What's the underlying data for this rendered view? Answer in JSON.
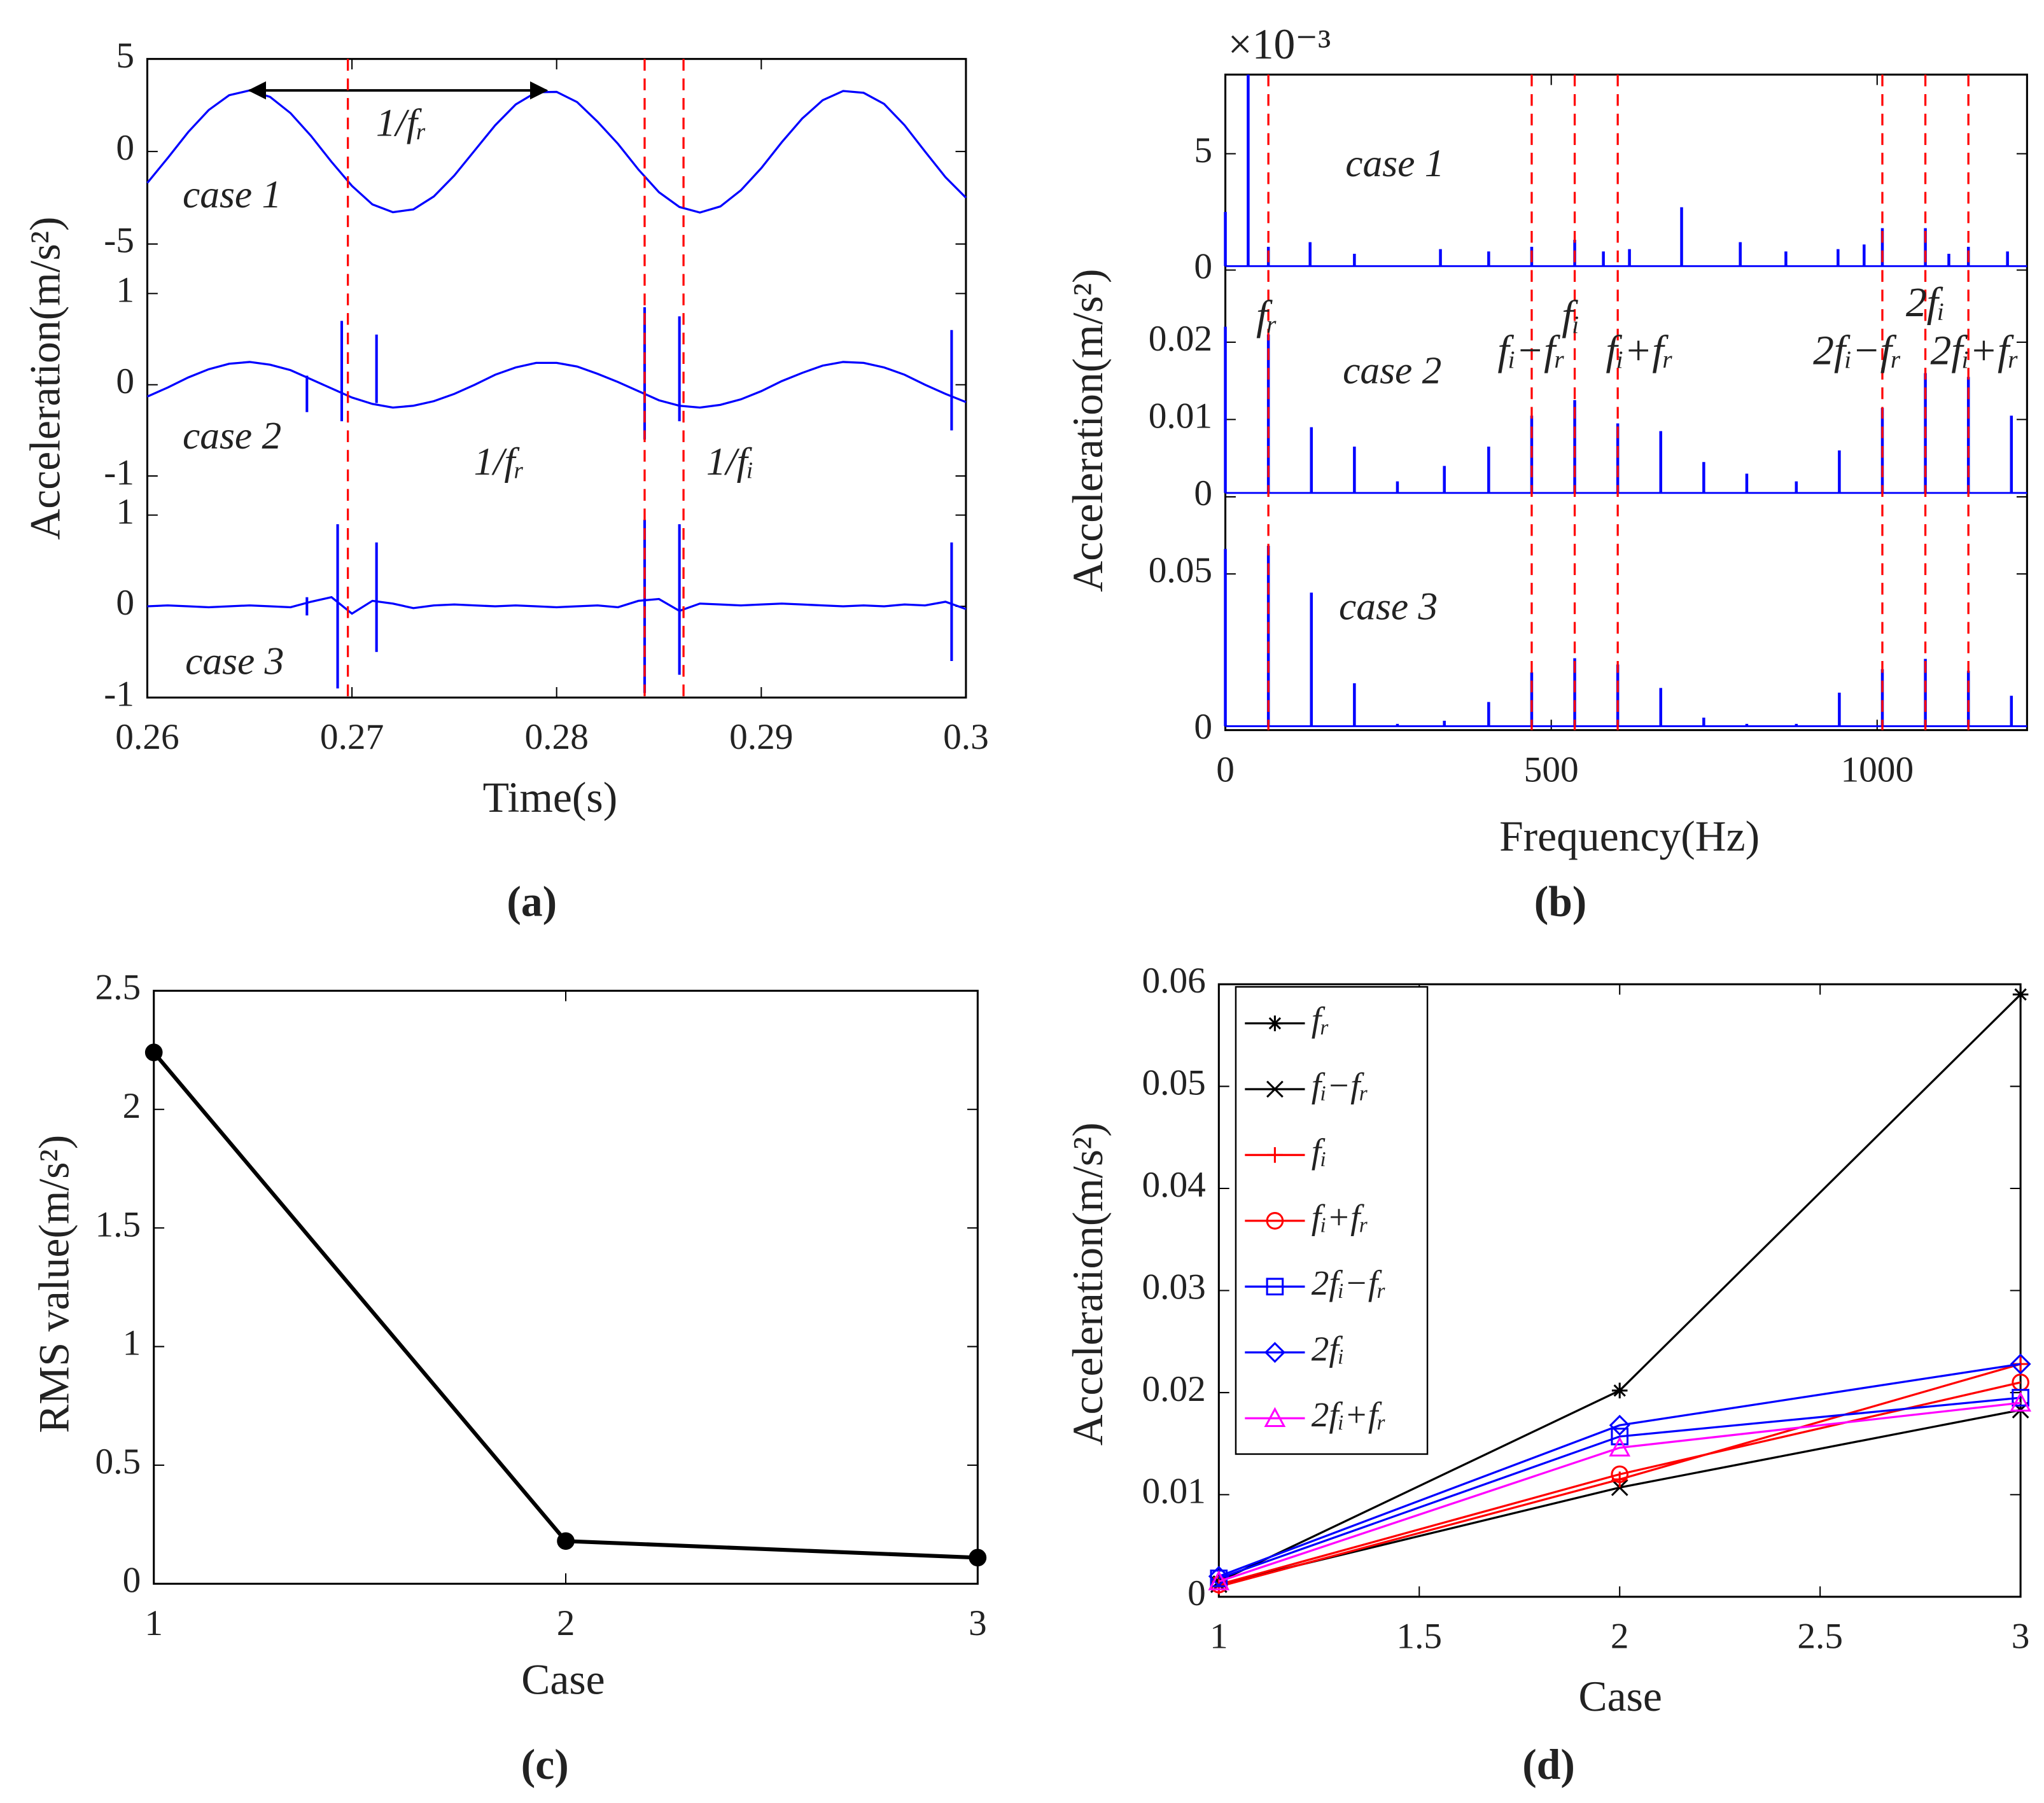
{
  "chart_data": [
    {
      "type": "line",
      "label": "(a)",
      "xlabel": "Time(s)",
      "ylabel": "Acceleration(m/s²)",
      "color": "#0000ff",
      "vline_color": "#ff0000",
      "xlim": [
        0.26,
        0.3
      ],
      "xticks": [
        0.26,
        0.27,
        0.28,
        0.29,
        0.3
      ],
      "x": [
        0.26,
        0.261,
        0.262,
        0.263,
        0.264,
        0.265,
        0.266,
        0.267,
        0.268,
        0.269,
        0.27,
        0.271,
        0.272,
        0.273,
        0.274,
        0.275,
        0.276,
        0.277,
        0.278,
        0.279,
        0.28,
        0.281,
        0.282,
        0.283,
        0.284,
        0.285,
        0.286,
        0.287,
        0.288,
        0.289,
        0.29,
        0.291,
        0.292,
        0.293,
        0.294,
        0.295,
        0.296,
        0.297,
        0.298,
        0.299,
        0.3
      ],
      "vlines": [
        0.2698,
        0.2843,
        0.2862
      ],
      "arrow": {
        "x": [
          0.265,
          0.2795
        ],
        "y": 3.3
      },
      "annotations": [
        "1/fᵣ",
        "1/fᵣ",
        "1/fᵢ"
      ],
      "panels": [
        {
          "name": "case 1",
          "ylim": [
            -5,
            5
          ],
          "yticks": [
            -5,
            0,
            5
          ],
          "values": [
            -1.7,
            -0.35,
            1.05,
            2.24,
            3.04,
            3.3,
            2.95,
            2.07,
            0.84,
            -0.56,
            -1.86,
            -2.86,
            -3.28,
            -3.13,
            -2.43,
            -1.3,
            0.06,
            1.42,
            2.54,
            3.2,
            3.22,
            2.67,
            1.61,
            0.41,
            -0.98,
            -2.2,
            -3.0,
            -3.3,
            -2.97,
            -2.1,
            -0.9,
            0.5,
            1.78,
            2.77,
            3.27,
            3.17,
            2.57,
            1.42,
            0,
            -1.39,
            -2.5
          ],
          "impulse_x": [],
          "impulse_high": [],
          "impulse_low": []
        },
        {
          "name": "case 2",
          "ylim": [
            -1,
            1
          ],
          "yticks": [
            -1,
            0,
            1
          ],
          "values": [
            -0.13,
            -0.03,
            0.08,
            0.17,
            0.23,
            0.25,
            0.22,
            0.16,
            0.06,
            -0.04,
            -0.14,
            -0.21,
            -0.25,
            -0.23,
            -0.18,
            -0.1,
            0,
            0.11,
            0.19,
            0.24,
            0.24,
            0.2,
            0.12,
            0.03,
            -0.07,
            -0.17,
            -0.23,
            -0.25,
            -0.22,
            -0.16,
            -0.07,
            0.04,
            0.13,
            0.21,
            0.25,
            0.24,
            0.19,
            0.11,
            0,
            -0.1,
            -0.19
          ],
          "impulse_x": [
            0.2678,
            0.2695,
            0.2712,
            0.2843,
            0.286,
            0.2993
          ],
          "impulse_high": [
            0.1,
            0.7,
            0.55,
            0.85,
            0.75,
            0.6
          ],
          "impulse_low": [
            -0.3,
            -0.4,
            -0.2,
            -0.6,
            -0.4,
            -0.5
          ]
        },
        {
          "name": "case 3",
          "ylim": [
            -1,
            1
          ],
          "yticks": [
            -1,
            0,
            1
          ],
          "values": [
            0,
            0.01,
            0,
            -0.01,
            0,
            0.01,
            0,
            -0.01,
            0.05,
            0.1,
            -0.08,
            0.06,
            0.03,
            -0.02,
            0.01,
            0.02,
            0.01,
            0,
            0.01,
            0,
            -0.01,
            0,
            0.01,
            -0.01,
            0.06,
            0.08,
            -0.05,
            0.03,
            0.02,
            0.01,
            0.02,
            0.03,
            0.02,
            0.01,
            0,
            0.01,
            0,
            0.02,
            0.01,
            0.05,
            -0.03
          ],
          "impulse_x": [
            0.2678,
            0.2693,
            0.2712,
            0.2843,
            0.286,
            0.2993
          ],
          "impulse_high": [
            0.1,
            0.9,
            0.7,
            0.95,
            0.9,
            0.7
          ],
          "impulse_low": [
            -0.1,
            -0.9,
            -0.5,
            -0.95,
            -0.75,
            -0.6
          ]
        }
      ]
    },
    {
      "type": "stem",
      "label": "(b)",
      "xlabel": "Frequency(Hz)",
      "ylabel": "Acceleration(m/s²)",
      "color": "#0000ff",
      "vline_color": "#ff0000",
      "xlim": [
        0,
        1230
      ],
      "xticks": [
        0,
        500,
        1000
      ],
      "exponent": "×10⁻³",
      "harmonic_x": [
        66,
        470,
        536,
        602,
        1008,
        1074,
        1140
      ],
      "harmonic_labels": [
        "fᵣ",
        "fᵢ−fᵣ",
        "fᵢ",
        "fᵢ+fᵣ",
        "2fᵢ−fᵣ",
        "2fᵢ",
        "2fᵢ+fᵣ"
      ],
      "panels": [
        {
          "name": "case 1",
          "ylim": [
            0,
            0.0084
          ],
          "yticks": [
            0,
            {
              "value": 0.005,
              "label": "5"
            }
          ],
          "x": [
            0,
            35,
            66,
            130,
            198,
            330,
            404,
            470,
            536,
            580,
            620,
            700,
            790,
            860,
            940,
            980,
            1008,
            1074,
            1110,
            1140,
            1200
          ],
          "values": [
            0.0025,
            0.0084,
            0.001,
            0.0012,
            0.0007,
            0.0009,
            0.0008,
            0.001,
            0.0013,
            0.0008,
            0.0009,
            0.0027,
            0.0012,
            0.0008,
            0.0009,
            0.0011,
            0.0018,
            0.0018,
            0.0007,
            0.001,
            0.0008
          ]
        },
        {
          "name": "case 2",
          "ylim": [
            0,
            0.03
          ],
          "yticks": [
            0,
            0.01,
            0.02
          ],
          "x": [
            0,
            66,
            132,
            198,
            264,
            336,
            404,
            470,
            536,
            602,
            668,
            734,
            800,
            876,
            942,
            1008,
            1074,
            1140,
            1206
          ],
          "values": [
            0.022,
            0.021,
            0.009,
            0.0065,
            0.002,
            0.004,
            0.0065,
            0.0105,
            0.0125,
            0.0095,
            0.0085,
            0.0045,
            0.003,
            0.002,
            0.006,
            0.0115,
            0.016,
            0.0155,
            0.0105
          ]
        },
        {
          "name": "case 3",
          "ylim": [
            0,
            0.073
          ],
          "yticks": [
            0,
            0.05
          ],
          "x": [
            0,
            66,
            132,
            198,
            264,
            336,
            404,
            470,
            536,
            602,
            668,
            734,
            800,
            876,
            942,
            1008,
            1074,
            1140,
            1206
          ],
          "values": [
            0.058,
            0.059,
            0.044,
            0.015,
            0.002,
            0.003,
            0.009,
            0.0185,
            0.023,
            0.021,
            0.0135,
            0.004,
            0.002,
            0.002,
            0.012,
            0.0195,
            0.0228,
            0.019,
            0.011
          ]
        }
      ]
    },
    {
      "type": "line",
      "label": "(c)",
      "xlabel": "Case",
      "ylabel": "RMS value(m/s²)",
      "xlim": [
        1,
        3
      ],
      "xticks": [
        1,
        2,
        3
      ],
      "ylim": [
        0,
        2.5
      ],
      "yticks": [
        0,
        0.5,
        1,
        1.5,
        2,
        2.5
      ],
      "x": [
        1,
        2,
        3
      ],
      "series": [
        {
          "color": "#000000",
          "marker": "dot",
          "values": [
            2.24,
            0.18,
            0.11
          ]
        }
      ]
    },
    {
      "type": "line",
      "label": "(d)",
      "xlabel": "Case",
      "ylabel": "Acceleration(m/s²)",
      "legend": "upper left",
      "xlim": [
        1,
        3
      ],
      "xticks": [
        1,
        1.5,
        2,
        2.5,
        3
      ],
      "ylim": [
        0,
        0.06
      ],
      "yticks": [
        0,
        0.01,
        0.02,
        0.03,
        0.04,
        0.05,
        0.06
      ],
      "x": [
        1,
        2,
        3
      ],
      "series": [
        {
          "name": "fᵣ",
          "color": "#000000",
          "marker": "star",
          "values": [
            0.0015,
            0.0202,
            0.059
          ]
        },
        {
          "name": "fᵢ−fᵣ",
          "color": "#000000",
          "marker": "x",
          "values": [
            0.0012,
            0.0107,
            0.0183
          ]
        },
        {
          "name": "fᵢ",
          "color": "#ff0000",
          "marker": "plus",
          "values": [
            0.001,
            0.0115,
            0.0228
          ]
        },
        {
          "name": "fᵢ+fᵣ",
          "color": "#ff0000",
          "marker": "circle",
          "values": [
            0.0012,
            0.012,
            0.021
          ]
        },
        {
          "name": "2fᵢ−fᵣ",
          "color": "#0000ff",
          "marker": "square",
          "values": [
            0.0018,
            0.0157,
            0.0195
          ]
        },
        {
          "name": "2fᵢ",
          "color": "#0000ff",
          "marker": "diamond",
          "values": [
            0.002,
            0.0168,
            0.0228
          ]
        },
        {
          "name": "2fᵢ+fᵣ",
          "color": "#ff00ff",
          "marker": "triangle",
          "values": [
            0.0015,
            0.0146,
            0.019
          ]
        }
      ]
    }
  ]
}
